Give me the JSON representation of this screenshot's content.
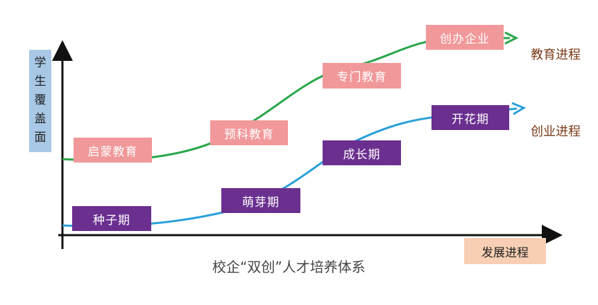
{
  "y_axis_label": [
    "学",
    "生",
    "覆",
    "盖",
    "面"
  ],
  "x_axis_label": "发展进程",
  "caption": "校企“双创”人才培养体系",
  "education_track": {
    "label": "教育进程",
    "color": "#2aa64a",
    "stages": [
      "启蒙教育",
      "预科教育",
      "专门教育",
      "创办企业"
    ]
  },
  "entrepreneurship_track": {
    "label": "创业进程",
    "color": "#2aa0d8",
    "stages": [
      "种子期",
      "萌芽期",
      "成长期",
      "开花期"
    ]
  }
}
